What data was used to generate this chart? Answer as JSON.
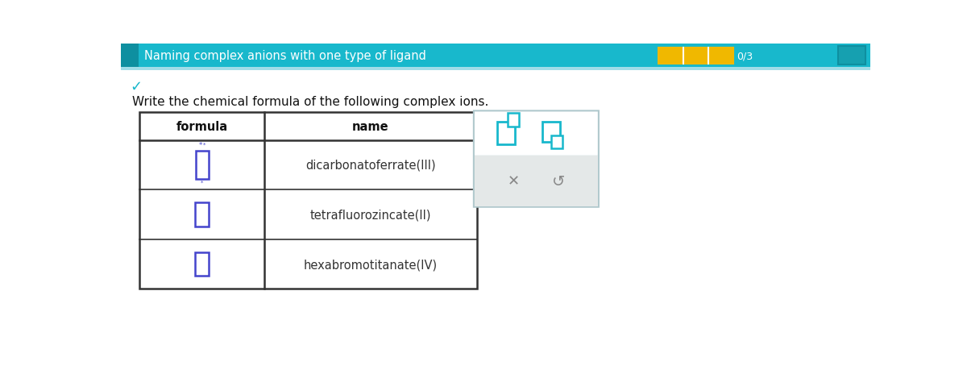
{
  "title": "Naming complex anions with one type of ligand",
  "instruction": "Write the chemical formula of the following complex ions.",
  "header_col1": "formula",
  "header_col2": "name",
  "rows": [
    {
      "name": "dicarbonatoferrate(III)"
    },
    {
      "name": "tetrafluorozincate(II)"
    },
    {
      "name": "hexabromotitanate(IV)"
    }
  ],
  "top_bar_color": "#18b8cc",
  "top_bar_text_color": "#ffffff",
  "table_border_color": "#333333",
  "name_text_color": "#333333",
  "formula_box_color": "#4444cc",
  "instruction_color": "#111111",
  "popup_border_color": "#b0c8cc",
  "popup_bg": "#ffffff",
  "popup_bottom_bg": "#e4e8e8",
  "teal_color": "#18b8cc",
  "checkmark_color": "#18b8cc",
  "score_yellow": "#f0b800",
  "background_color": "#ffffff"
}
